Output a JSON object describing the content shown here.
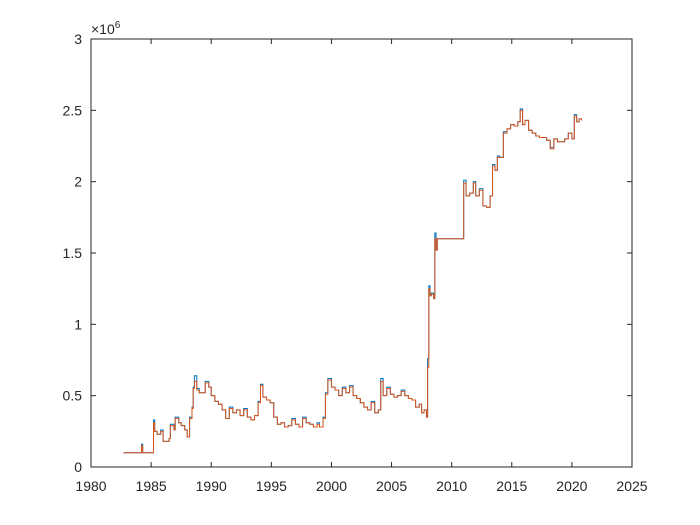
{
  "chart_data": {
    "type": "line",
    "title": "",
    "xlabel": "",
    "ylabel": "",
    "xlim": [
      1980,
      2025
    ],
    "ylim": [
      0,
      3000000
    ],
    "xticks": [
      1980,
      1985,
      1990,
      1995,
      2000,
      2005,
      2010,
      2015,
      2020,
      2025
    ],
    "yticks": [
      0,
      500000,
      1000000,
      1500000,
      2000000,
      2500000,
      3000000
    ],
    "ytick_labels": [
      "0",
      "0.5",
      "1",
      "1.5",
      "2",
      "2.5",
      "3"
    ],
    "y_exponent": {
      "base": "×10",
      "power": "6"
    },
    "grid": false,
    "legend": "none",
    "series": [
      {
        "color": "#0072BD",
        "x": [
          1982.7,
          1984.0,
          1984.2,
          1984.3,
          1985.0,
          1985.2,
          1985.3,
          1985.5,
          1985.8,
          1986.0,
          1986.5,
          1986.6,
          1986.9,
          1987.0,
          1987.3,
          1987.5,
          1987.8,
          1988.0,
          1988.2,
          1988.4,
          1988.5,
          1988.6,
          1988.8,
          1989.0,
          1989.2,
          1989.5,
          1989.8,
          1990.0,
          1990.3,
          1990.6,
          1990.9,
          1991.2,
          1991.5,
          1991.8,
          1992.1,
          1992.4,
          1992.7,
          1993.0,
          1993.3,
          1993.6,
          1993.9,
          1994.1,
          1994.3,
          1994.6,
          1994.9,
          1995.2,
          1995.5,
          1995.8,
          1996.1,
          1996.4,
          1996.7,
          1997.0,
          1997.3,
          1997.6,
          1997.9,
          1998.2,
          1998.5,
          1998.8,
          1999.0,
          1999.3,
          1999.5,
          1999.7,
          2000.0,
          2000.3,
          2000.6,
          2000.9,
          2001.2,
          2001.5,
          2001.8,
          2002.1,
          2002.4,
          2002.7,
          2003.0,
          2003.3,
          2003.6,
          2003.9,
          2004.1,
          2004.3,
          2004.6,
          2004.9,
          2005.2,
          2005.5,
          2005.8,
          2006.1,
          2006.4,
          2006.7,
          2007.0,
          2007.3,
          2007.5,
          2007.7,
          2007.9,
          2008.0,
          2008.1,
          2008.2,
          2008.3,
          2008.5,
          2008.6,
          2008.7,
          2008.8,
          2009.0,
          2009.5,
          2010.0,
          2010.5,
          2010.9,
          2011.0,
          2011.2,
          2011.5,
          2011.8,
          2012.0,
          2012.3,
          2012.6,
          2012.9,
          2013.2,
          2013.4,
          2013.6,
          2013.8,
          2014.0,
          2014.3,
          2014.6,
          2014.9,
          2015.2,
          2015.5,
          2015.7,
          2015.9,
          2016.1,
          2016.4,
          2016.7,
          2017.0,
          2017.3,
          2017.6,
          2017.9,
          2018.2,
          2018.5,
          2018.8,
          2019.1,
          2019.4,
          2019.7,
          2020.0,
          2020.2,
          2020.4,
          2020.6,
          2020.8
        ],
        "y": [
          100000,
          100000,
          160000,
          100000,
          100000,
          330000,
          250000,
          230000,
          260000,
          180000,
          200000,
          300000,
          260000,
          350000,
          310000,
          290000,
          260000,
          210000,
          350000,
          420000,
          560000,
          640000,
          550000,
          520000,
          520000,
          600000,
          560000,
          500000,
          460000,
          440000,
          400000,
          340000,
          420000,
          380000,
          400000,
          360000,
          410000,
          350000,
          330000,
          360000,
          460000,
          580000,
          490000,
          470000,
          450000,
          350000,
          300000,
          310000,
          280000,
          290000,
          340000,
          300000,
          280000,
          350000,
          310000,
          300000,
          280000,
          310000,
          280000,
          350000,
          520000,
          620000,
          560000,
          540000,
          500000,
          560000,
          520000,
          570000,
          500000,
          480000,
          450000,
          420000,
          400000,
          460000,
          380000,
          400000,
          620000,
          500000,
          560000,
          510000,
          490000,
          500000,
          540000,
          500000,
          480000,
          470000,
          420000,
          440000,
          380000,
          400000,
          350000,
          760000,
          1270000,
          1200000,
          1220000,
          1180000,
          1640000,
          1520000,
          1600000,
          1600000,
          1600000,
          1600000,
          1600000,
          1600000,
          2010000,
          1900000,
          1920000,
          2000000,
          1900000,
          1950000,
          1830000,
          1820000,
          1900000,
          2120000,
          2080000,
          2180000,
          2170000,
          2350000,
          2370000,
          2400000,
          2390000,
          2420000,
          2510000,
          2400000,
          2430000,
          2360000,
          2340000,
          2320000,
          2310000,
          2310000,
          2290000,
          2240000,
          2300000,
          2280000,
          2280000,
          2300000,
          2340000,
          2300000,
          2470000,
          2420000,
          2440000,
          2430000
        ]
      },
      {
        "color": "#D95319",
        "x": [
          1982.7,
          1984.0,
          1984.2,
          1984.3,
          1985.0,
          1985.2,
          1985.3,
          1985.5,
          1985.8,
          1986.0,
          1986.5,
          1986.6,
          1986.9,
          1987.0,
          1987.3,
          1987.5,
          1987.8,
          1988.0,
          1988.2,
          1988.4,
          1988.5,
          1988.6,
          1988.8,
          1989.0,
          1989.2,
          1989.5,
          1989.8,
          1990.0,
          1990.3,
          1990.6,
          1990.9,
          1991.2,
          1991.5,
          1991.8,
          1992.1,
          1992.4,
          1992.7,
          1993.0,
          1993.3,
          1993.6,
          1993.9,
          1994.1,
          1994.3,
          1994.6,
          1994.9,
          1995.2,
          1995.5,
          1995.8,
          1996.1,
          1996.4,
          1996.7,
          1997.0,
          1997.3,
          1997.6,
          1997.9,
          1998.2,
          1998.5,
          1998.8,
          1999.0,
          1999.3,
          1999.5,
          1999.7,
          2000.0,
          2000.3,
          2000.6,
          2000.9,
          2001.2,
          2001.5,
          2001.8,
          2002.1,
          2002.4,
          2002.7,
          2003.0,
          2003.3,
          2003.6,
          2003.9,
          2004.1,
          2004.3,
          2004.6,
          2004.9,
          2005.2,
          2005.5,
          2005.8,
          2006.1,
          2006.4,
          2006.7,
          2007.0,
          2007.3,
          2007.5,
          2007.7,
          2007.9,
          2008.0,
          2008.1,
          2008.2,
          2008.3,
          2008.5,
          2008.6,
          2008.7,
          2008.8,
          2009.0,
          2009.5,
          2010.0,
          2010.5,
          2010.9,
          2011.0,
          2011.2,
          2011.5,
          2011.8,
          2012.0,
          2012.3,
          2012.6,
          2012.9,
          2013.2,
          2013.4,
          2013.6,
          2013.8,
          2014.0,
          2014.3,
          2014.6,
          2014.9,
          2015.2,
          2015.5,
          2015.7,
          2015.9,
          2016.1,
          2016.4,
          2016.7,
          2017.0,
          2017.3,
          2017.6,
          2017.9,
          2018.2,
          2018.5,
          2018.8,
          2019.1,
          2019.4,
          2019.7,
          2020.0,
          2020.2,
          2020.4,
          2020.6,
          2020.8
        ],
        "y": [
          100000,
          100000,
          150000,
          100000,
          100000,
          310000,
          250000,
          230000,
          250000,
          180000,
          200000,
          290000,
          260000,
          340000,
          310000,
          290000,
          260000,
          210000,
          340000,
          410000,
          550000,
          600000,
          540000,
          520000,
          520000,
          590000,
          560000,
          500000,
          460000,
          440000,
          400000,
          340000,
          410000,
          380000,
          400000,
          360000,
          400000,
          350000,
          330000,
          360000,
          450000,
          570000,
          490000,
          470000,
          450000,
          350000,
          300000,
          310000,
          280000,
          290000,
          330000,
          300000,
          280000,
          340000,
          310000,
          300000,
          280000,
          300000,
          280000,
          340000,
          510000,
          610000,
          560000,
          540000,
          500000,
          550000,
          520000,
          560000,
          500000,
          480000,
          450000,
          420000,
          400000,
          450000,
          380000,
          400000,
          600000,
          500000,
          550000,
          510000,
          490000,
          500000,
          530000,
          500000,
          480000,
          470000,
          420000,
          440000,
          380000,
          400000,
          350000,
          700000,
          1250000,
          1200000,
          1210000,
          1180000,
          1600000,
          1520000,
          1600000,
          1600000,
          1600000,
          1600000,
          1600000,
          1600000,
          1990000,
          1900000,
          1920000,
          1990000,
          1900000,
          1940000,
          1830000,
          1820000,
          1900000,
          2110000,
          2080000,
          2170000,
          2170000,
          2340000,
          2370000,
          2400000,
          2390000,
          2420000,
          2500000,
          2400000,
          2430000,
          2360000,
          2340000,
          2320000,
          2310000,
          2310000,
          2290000,
          2230000,
          2300000,
          2280000,
          2280000,
          2300000,
          2340000,
          2300000,
          2460000,
          2420000,
          2440000,
          2430000
        ]
      }
    ]
  }
}
